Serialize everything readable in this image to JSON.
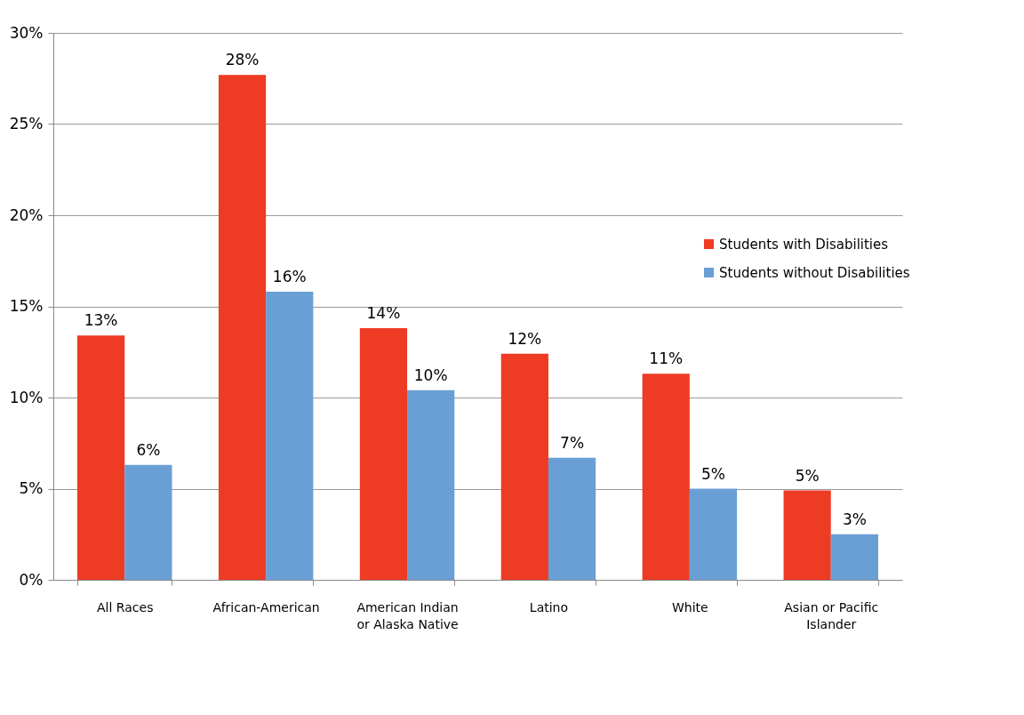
{
  "chart_data": {
    "type": "bar",
    "categories": [
      "All Races",
      "African-American",
      "American Indian or Alaska Native",
      "Latino",
      "White",
      "Asian or Pacific Islander"
    ],
    "series": [
      {
        "name": "Students with Disabilities",
        "color": "#ee3b24",
        "values": [
          13.4,
          27.7,
          13.8,
          12.4,
          11.3,
          4.9
        ],
        "value_labels": [
          "13%",
          "28%",
          "14%",
          "12%",
          "11%",
          "5%"
        ]
      },
      {
        "name": "Students without Disabilities",
        "color": "#6a9fd6",
        "values": [
          6.3,
          15.8,
          10.4,
          6.7,
          5.0,
          2.5
        ],
        "value_labels": [
          "6%",
          "16%",
          "10%",
          "7%",
          "5%",
          "3%"
        ]
      }
    ],
    "ylim": [
      0,
      30
    ],
    "yticks": [
      {
        "value": 0,
        "label": "0%"
      },
      {
        "value": 5,
        "label": "5%"
      },
      {
        "value": 10,
        "label": "10%"
      },
      {
        "value": 15,
        "label": "15%"
      },
      {
        "value": 20,
        "label": "20%"
      },
      {
        "value": 25,
        "label": "25%"
      },
      {
        "value": 30,
        "label": "30%"
      }
    ],
    "grid": "y",
    "legend": "right"
  }
}
